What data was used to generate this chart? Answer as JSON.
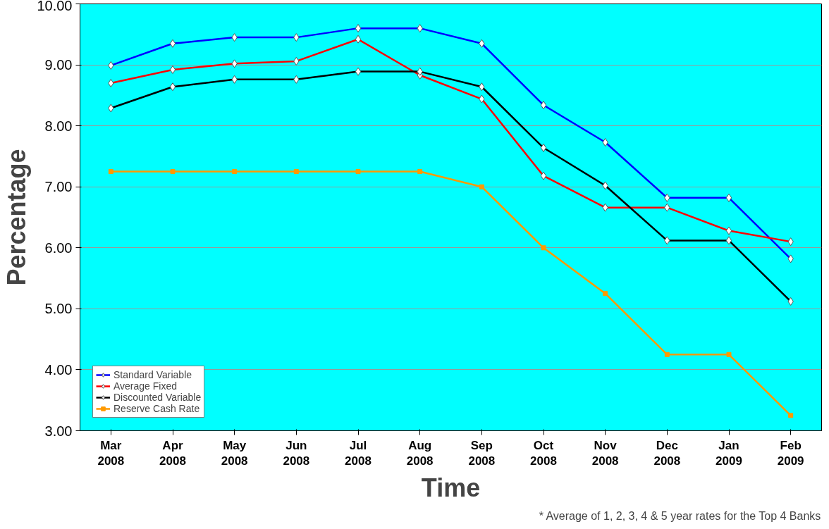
{
  "chart_data": {
    "type": "line",
    "xlabel": "Time",
    "ylabel": "Percentage",
    "categories": [
      "Mar 2008",
      "Apr 2008",
      "May 2008",
      "Jun 2008",
      "Jul 2008",
      "Aug 2008",
      "Sep 2008",
      "Oct 2008",
      "Nov 2008",
      "Dec 2008",
      "Jan 2009",
      "Feb 2009"
    ],
    "series": [
      {
        "name": "Standard Variable",
        "color": "#0000ff",
        "marker": "diamond",
        "values": [
          8.99,
          9.35,
          9.45,
          9.45,
          9.6,
          9.6,
          9.35,
          8.34,
          7.73,
          6.82,
          6.82,
          5.82
        ]
      },
      {
        "name": "Average Fixed",
        "color": "#ff0000",
        "marker": "diamond",
        "values": [
          8.7,
          8.92,
          9.02,
          9.06,
          9.42,
          8.83,
          8.44,
          7.18,
          6.66,
          6.66,
          6.28,
          6.1
        ]
      },
      {
        "name": "Discounted Variable",
        "color": "#000000",
        "marker": "diamond",
        "values": [
          8.29,
          8.64,
          8.76,
          8.76,
          8.89,
          8.89,
          8.64,
          7.64,
          7.02,
          6.12,
          6.12,
          5.12
        ]
      },
      {
        "name": "Reserve Cash Rate",
        "color": "#ff9900",
        "marker": "square",
        "values": [
          7.25,
          7.25,
          7.25,
          7.25,
          7.25,
          7.25,
          7.0,
          6.0,
          5.25,
          4.25,
          4.25,
          3.25
        ]
      }
    ],
    "ylim": [
      3,
      10
    ],
    "yticks": [
      {
        "value": 3,
        "label": "3.00"
      },
      {
        "value": 4,
        "label": "4.00"
      },
      {
        "value": 5,
        "label": "5.00"
      },
      {
        "value": 6,
        "label": "6.00"
      },
      {
        "value": 7,
        "label": "7.00"
      },
      {
        "value": 8,
        "label": "8.00"
      },
      {
        "value": 9,
        "label": "9.00"
      },
      {
        "value": 10,
        "label": "10.00"
      }
    ],
    "grid": "y",
    "legend": "bottom left",
    "line_style": "solid",
    "annotations": [
      "* Average of 1, 2, 3, 4 & 5 year rates for the Top 4 Banks"
    ]
  }
}
